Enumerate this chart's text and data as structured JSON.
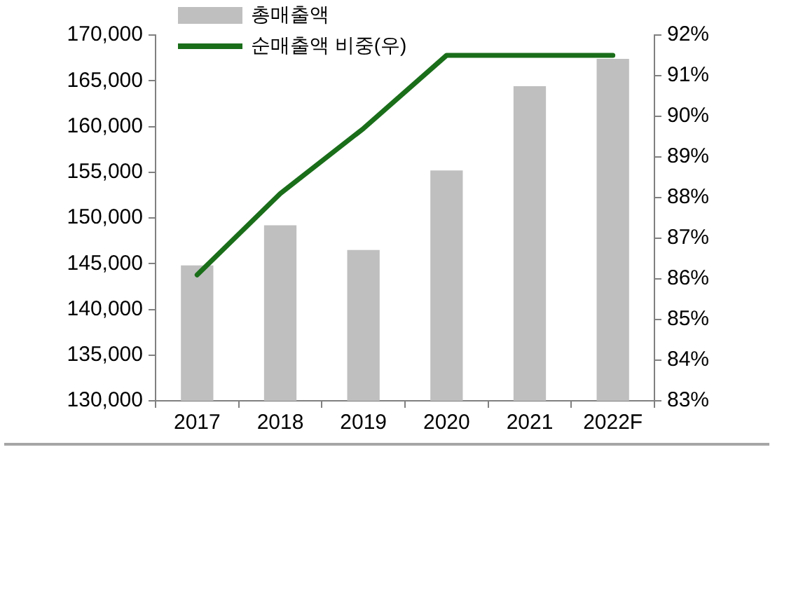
{
  "chart_data": {
    "type": "bar",
    "categories": [
      "2017",
      "2018",
      "2019",
      "2020",
      "2021",
      "2022F"
    ],
    "series": [
      {
        "name": "총매출액",
        "color": "#bfbfbf",
        "values": [
          144800,
          149200,
          146500,
          155200,
          164400,
          167400
        ]
      },
      {
        "name": "순매출액 비중(우)",
        "type": "line",
        "axis": "y2",
        "color": "#1a6e1a",
        "values": [
          86.1,
          88.1,
          89.7,
          91.5,
          91.5,
          91.5
        ]
      }
    ],
    "ylim": [
      130000,
      170000
    ],
    "yticks": [
      {
        "value": 130000,
        "label": "130,000"
      },
      {
        "value": 135000,
        "label": "135,000"
      },
      {
        "value": 140000,
        "label": "140,000"
      },
      {
        "value": 145000,
        "label": "145,000"
      },
      {
        "value": 150000,
        "label": "150,000"
      },
      {
        "value": 155000,
        "label": "155,000"
      },
      {
        "value": 160000,
        "label": "160,000"
      },
      {
        "value": 165000,
        "label": "165,000"
      },
      {
        "value": 170000,
        "label": "170,000"
      }
    ],
    "y2lim": [
      83,
      92
    ],
    "y2ticks": [
      {
        "value": 83,
        "label": "83%"
      },
      {
        "value": 84,
        "label": "84%"
      },
      {
        "value": 85,
        "label": "85%"
      },
      {
        "value": 86,
        "label": "86%"
      },
      {
        "value": 87,
        "label": "87%"
      },
      {
        "value": 88,
        "label": "88%"
      },
      {
        "value": 89,
        "label": "89%"
      },
      {
        "value": 90,
        "label": "90%"
      },
      {
        "value": 91,
        "label": "91%"
      },
      {
        "value": 92,
        "label": "92%"
      }
    ],
    "legend": "top left",
    "marker": "none"
  }
}
